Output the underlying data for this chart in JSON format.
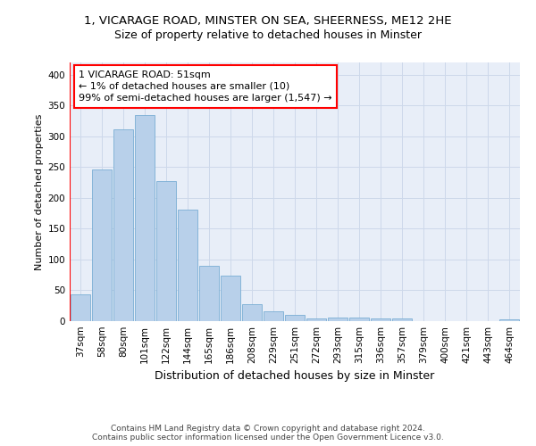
{
  "title_line1": "1, VICARAGE ROAD, MINSTER ON SEA, SHEERNESS, ME12 2HE",
  "title_line2": "Size of property relative to detached houses in Minster",
  "xlabel": "Distribution of detached houses by size in Minster",
  "ylabel": "Number of detached properties",
  "categories": [
    "37sqm",
    "58sqm",
    "80sqm",
    "101sqm",
    "122sqm",
    "144sqm",
    "165sqm",
    "186sqm",
    "208sqm",
    "229sqm",
    "251sqm",
    "272sqm",
    "293sqm",
    "315sqm",
    "336sqm",
    "357sqm",
    "379sqm",
    "400sqm",
    "421sqm",
    "443sqm",
    "464sqm"
  ],
  "values": [
    44,
    246,
    312,
    335,
    227,
    181,
    90,
    74,
    27,
    16,
    10,
    5,
    6,
    6,
    5,
    4,
    0,
    0,
    0,
    0,
    3
  ],
  "bar_color": "#b8d0ea",
  "bar_edge_color": "#7aadd4",
  "annotation_box_text": "1 VICARAGE ROAD: 51sqm\n← 1% of detached houses are smaller (10)\n99% of semi-detached houses are larger (1,547) →",
  "ylim": [
    0,
    420
  ],
  "yticks": [
    0,
    50,
    100,
    150,
    200,
    250,
    300,
    350,
    400
  ],
  "grid_color": "#cdd8ea",
  "background_color": "#e8eef8",
  "footer_text": "Contains HM Land Registry data © Crown copyright and database right 2024.\nContains public sector information licensed under the Open Government Licence v3.0.",
  "title_fontsize": 9.5,
  "subtitle_fontsize": 9,
  "ylabel_fontsize": 8,
  "xlabel_fontsize": 9,
  "tick_fontsize": 7.5,
  "annotation_fontsize": 8,
  "footer_fontsize": 6.5
}
